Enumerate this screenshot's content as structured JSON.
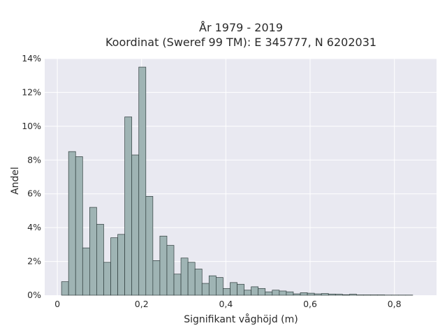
{
  "chart_data": {
    "type": "histogram",
    "title_line1": "År 1979 - 2019",
    "title_line2": "Koordinat (Sweref 99 TM): E 345777, N 6202031",
    "xlabel": "Signifikant våghöjd (m)",
    "ylabel": "Andel",
    "xlim": [
      -0.03,
      0.9
    ],
    "ylim": [
      0,
      14
    ],
    "x_ticks": [
      0,
      0.2,
      0.4,
      0.6,
      0.8
    ],
    "x_tick_labels": [
      "0",
      "0,2",
      "0,4",
      "0,6",
      "0,8"
    ],
    "y_ticks": [
      0,
      2,
      4,
      6,
      8,
      10,
      12,
      14
    ],
    "y_tick_labels": [
      "0%",
      "2%",
      "4%",
      "6%",
      "8%",
      "10%",
      "12%",
      "14%"
    ],
    "bin_width": 0.01667,
    "bin_start": 0.01,
    "values": [
      0.8,
      8.5,
      8.2,
      2.8,
      5.2,
      4.2,
      1.95,
      3.4,
      3.6,
      10.55,
      8.3,
      13.5,
      5.85,
      2.05,
      3.5,
      2.95,
      1.25,
      2.2,
      1.95,
      1.55,
      0.7,
      1.15,
      1.05,
      0.4,
      0.75,
      0.65,
      0.3,
      0.5,
      0.4,
      0.2,
      0.3,
      0.25,
      0.2,
      0.08,
      0.15,
      0.12,
      0.08,
      0.1,
      0.07,
      0.06,
      0.03,
      0.06,
      0.02,
      0.02,
      0.02,
      0.02,
      0.01,
      0.01,
      0.01,
      0.01
    ],
    "grid": true,
    "bar_color": "#9fb4b4",
    "bar_edge_color": "#2f3d3d",
    "plot_bg": "#e9e9f1",
    "grid_color": "#ffffff"
  }
}
